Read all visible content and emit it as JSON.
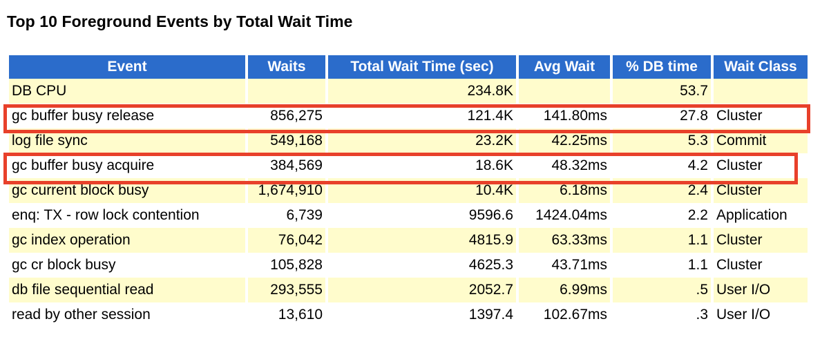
{
  "title": "Top 10 Foreground Events by Total Wait Time",
  "columns": [
    "Event",
    "Waits",
    "Total Wait Time (sec)",
    "Avg Wait",
    "% DB time",
    "Wait Class"
  ],
  "rows": [
    {
      "event": "DB CPU",
      "waits": "",
      "total": "234.8K",
      "avg": "",
      "pct": "53.7",
      "cls": ""
    },
    {
      "event": "gc buffer busy release",
      "waits": "856,275",
      "total": "121.4K",
      "avg": "141.80ms",
      "pct": "27.8",
      "cls": "Cluster"
    },
    {
      "event": "log file sync",
      "waits": "549,168",
      "total": "23.2K",
      "avg": "42.25ms",
      "pct": "5.3",
      "cls": "Commit"
    },
    {
      "event": "gc buffer busy acquire",
      "waits": "384,569",
      "total": "18.6K",
      "avg": "48.32ms",
      "pct": "4.2",
      "cls": "Cluster"
    },
    {
      "event": "gc current block busy",
      "waits": "1,674,910",
      "total": "10.4K",
      "avg": "6.18ms",
      "pct": "2.4",
      "cls": "Cluster"
    },
    {
      "event": "enq: TX - row lock contention",
      "waits": "6,739",
      "total": "9596.6",
      "avg": "1424.04ms",
      "pct": "2.2",
      "cls": "Application"
    },
    {
      "event": "gc index operation",
      "waits": "76,042",
      "total": "4815.9",
      "avg": "63.33ms",
      "pct": "1.1",
      "cls": "Cluster"
    },
    {
      "event": "gc cr block busy",
      "waits": "105,828",
      "total": "4625.3",
      "avg": "43.71ms",
      "pct": "1.1",
      "cls": "Cluster"
    },
    {
      "event": "db file sequential read",
      "waits": "293,555",
      "total": "2052.7",
      "avg": "6.99ms",
      "pct": ".5",
      "cls": "User I/O"
    },
    {
      "event": "read by other session",
      "waits": "13,610",
      "total": "1397.4",
      "avg": "102.67ms",
      "pct": ".3",
      "cls": "User I/O"
    }
  ],
  "highlight_color": "#e8402a",
  "header_color": "#2b6ccb",
  "stripe_color": "#fffccc"
}
